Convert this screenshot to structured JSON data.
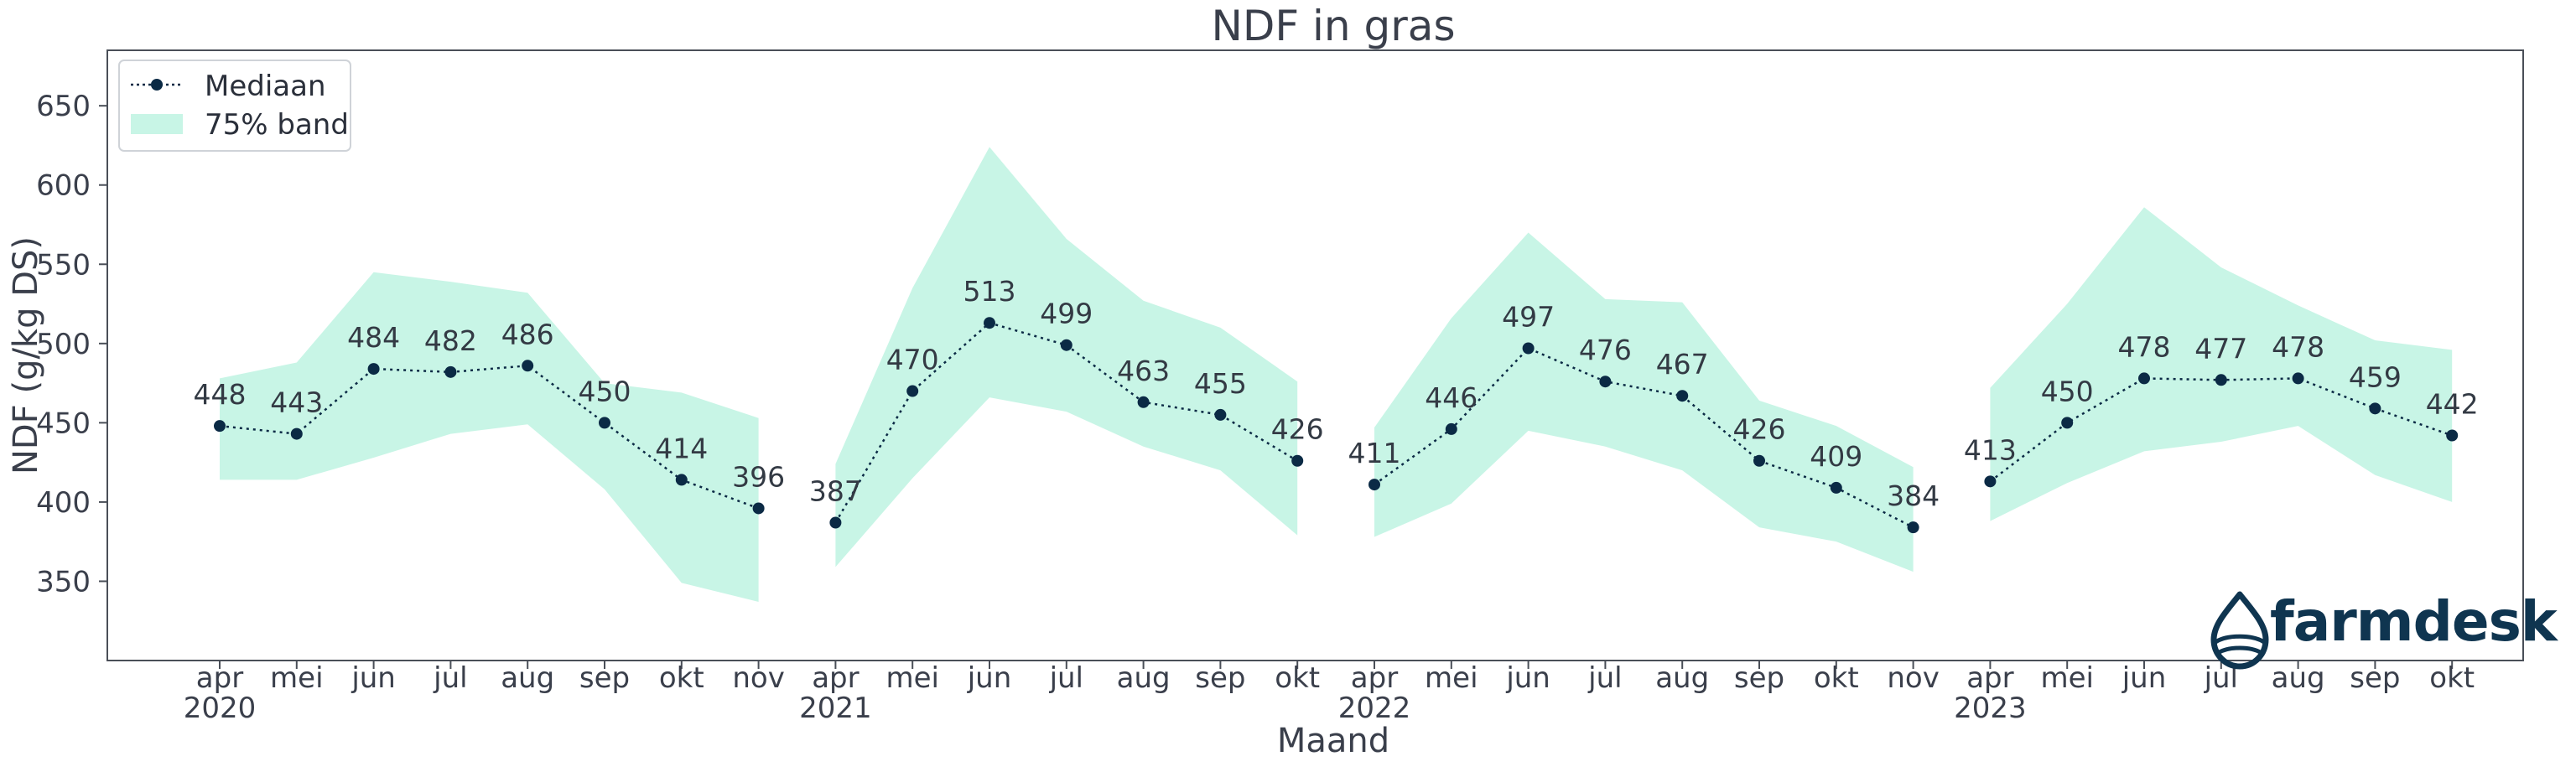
{
  "chart_data": {
    "type": "line",
    "title": "NDF in gras",
    "xlabel": "Maand",
    "ylabel": "NDF (g/kg DS)",
    "ylim": [
      300,
      685
    ],
    "yticks": [
      350,
      400,
      450,
      500,
      550,
      600,
      650
    ],
    "legend_position": "top-left",
    "legend": {
      "median": "Mediaan",
      "band": "75% band"
    },
    "segments": [
      {
        "year": "2020",
        "months": [
          "apr",
          "mei",
          "jun",
          "jul",
          "aug",
          "sep",
          "okt",
          "nov"
        ],
        "median": [
          448,
          443,
          484,
          482,
          486,
          450,
          414,
          396
        ],
        "band_upper": [
          478,
          488,
          545,
          539,
          532,
          475,
          469,
          453
        ],
        "band_lower": [
          414,
          414,
          428,
          443,
          449,
          408,
          349,
          337
        ]
      },
      {
        "year": "2021",
        "months": [
          "apr",
          "mei",
          "jun",
          "jul",
          "aug",
          "sep",
          "okt"
        ],
        "median": [
          387,
          470,
          513,
          499,
          463,
          455,
          426
        ],
        "band_upper": [
          424,
          535,
          624,
          566,
          527,
          510,
          476
        ],
        "band_lower": [
          359,
          415,
          466,
          457,
          435,
          420,
          379
        ]
      },
      {
        "year": "2022",
        "months": [
          "apr",
          "mei",
          "jun",
          "jul",
          "aug",
          "sep",
          "okt",
          "nov"
        ],
        "median": [
          411,
          446,
          497,
          476,
          467,
          426,
          409,
          384
        ],
        "band_upper": [
          447,
          516,
          570,
          528,
          526,
          464,
          448,
          422
        ],
        "band_lower": [
          378,
          399,
          445,
          435,
          420,
          384,
          375,
          356
        ]
      },
      {
        "year": "2023",
        "months": [
          "apr",
          "mei",
          "jun",
          "jul",
          "aug",
          "sep",
          "okt"
        ],
        "median": [
          413,
          450,
          478,
          477,
          478,
          459,
          442
        ],
        "band_upper": [
          472,
          525,
          586,
          548,
          524,
          502,
          496
        ],
        "band_lower": [
          388,
          412,
          432,
          438,
          448,
          417,
          400
        ]
      }
    ]
  },
  "brand": {
    "name": "farmdesk"
  },
  "colors": {
    "line": "#0b2a45",
    "band": "#c8f5e6",
    "text": "#3a3f4b",
    "brand": "#0f3550"
  }
}
